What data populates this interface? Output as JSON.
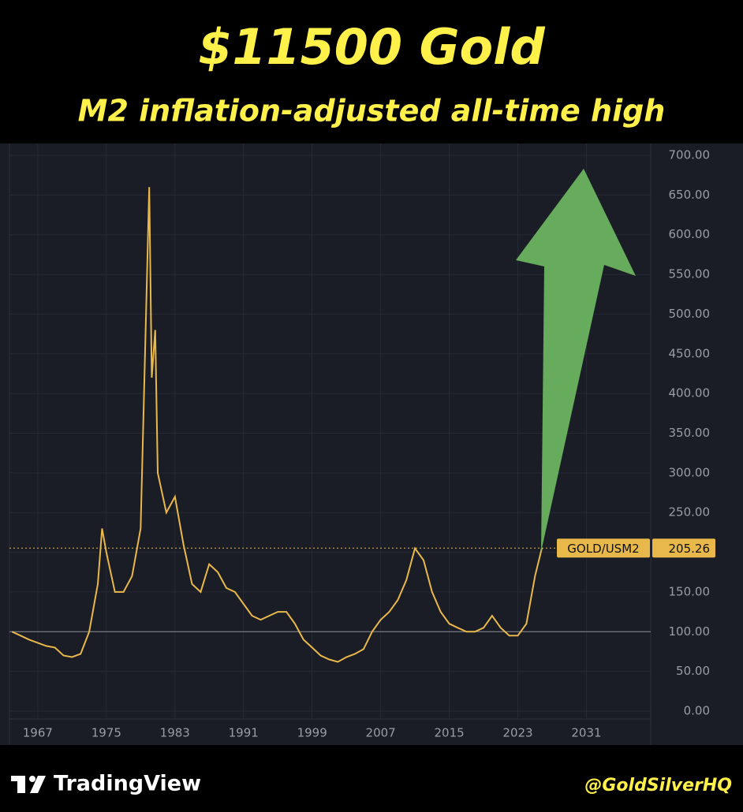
{
  "chart_data": {
    "type": "line",
    "title": "$11500 Gold",
    "subtitle": "M2 inflation-adjusted all-time high",
    "source": "TradingView",
    "credit": "@GoldSilverHQ",
    "symbol": "GOLD/USM2",
    "x": [
      1964,
      1965,
      1966,
      1967,
      1968,
      1969,
      1970,
      1971,
      1972,
      1973,
      1974,
      1974.5,
      1975,
      1976,
      1977,
      1978,
      1979,
      1980,
      1980.3,
      1980.7,
      1981,
      1982,
      1983,
      1984,
      1985,
      1986,
      1987,
      1988,
      1989,
      1990,
      1991,
      1992,
      1993,
      1994,
      1995,
      1996,
      1997,
      1998,
      1999,
      2000,
      2001,
      2002,
      2003,
      2004,
      2005,
      2006,
      2007,
      2008,
      2009,
      2010,
      2011,
      2012,
      2013,
      2014,
      2015,
      2016,
      2017,
      2018,
      2019,
      2020,
      2021,
      2022,
      2023,
      2024,
      2025,
      2025.8
    ],
    "series": [
      {
        "name": "GOLD/USM2",
        "color": "#e8b84a",
        "values": [
          100,
          95,
          90,
          86,
          82,
          80,
          70,
          68,
          72,
          100,
          160,
          230,
          200,
          150,
          150,
          170,
          230,
          660,
          420,
          480,
          300,
          250,
          270,
          210,
          160,
          150,
          185,
          175,
          155,
          150,
          135,
          120,
          115,
          120,
          125,
          125,
          110,
          90,
          80,
          70,
          65,
          62,
          68,
          72,
          78,
          100,
          115,
          125,
          140,
          165,
          205,
          190,
          150,
          125,
          110,
          105,
          100,
          100,
          105,
          120,
          105,
          95,
          95,
          110,
          170,
          205.26
        ]
      }
    ],
    "baseline": 100,
    "xlim": [
      1963.7,
      2038.5
    ],
    "xticks": [
      1967,
      1975,
      1983,
      1991,
      1999,
      2007,
      2015,
      2023,
      2031
    ],
    "ylim": [
      0,
      700
    ],
    "yticks": [
      {
        "value": 0,
        "label": "0.00"
      },
      {
        "value": 50,
        "label": "50.00"
      },
      {
        "value": 100,
        "label": "100.00"
      },
      {
        "value": 150,
        "label": "150.00"
      },
      {
        "value": 200,
        "label": "200.00"
      },
      {
        "value": 250,
        "label": "250.00"
      },
      {
        "value": 300,
        "label": "300.00"
      },
      {
        "value": 350,
        "label": "350.00"
      },
      {
        "value": 400,
        "label": "400.00"
      },
      {
        "value": 450,
        "label": "450.00"
      },
      {
        "value": 500,
        "label": "500.00"
      },
      {
        "value": 550,
        "label": "550.00"
      },
      {
        "value": 600,
        "label": "600.00"
      },
      {
        "value": 650,
        "label": "650.00"
      },
      {
        "value": 700,
        "label": "700.00"
      }
    ],
    "grid": true
  }
}
